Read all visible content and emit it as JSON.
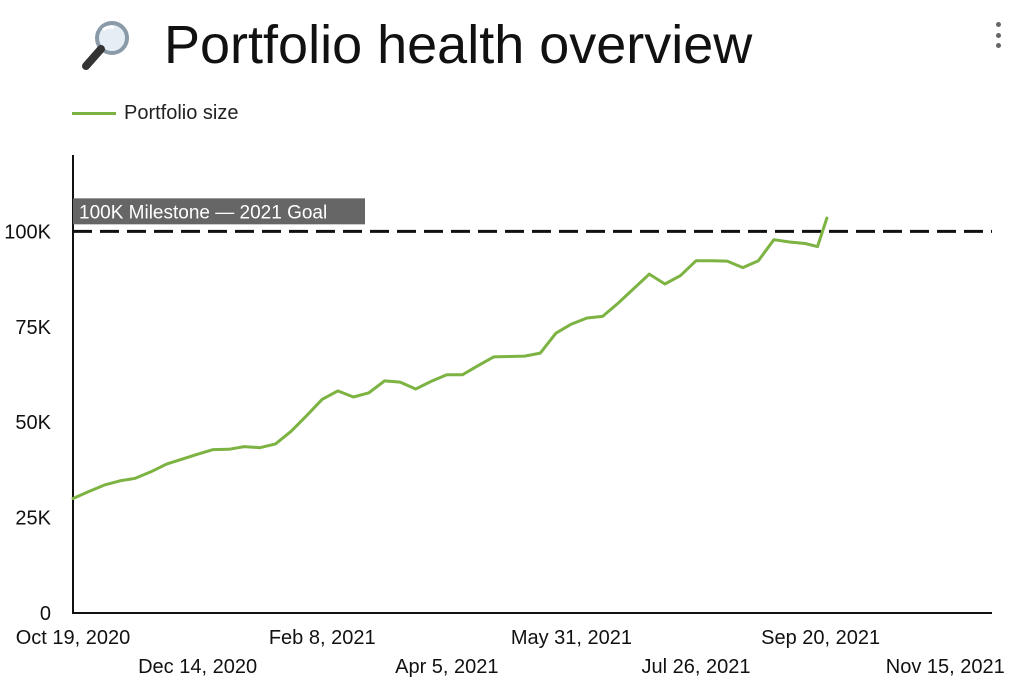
{
  "header": {
    "title": "Portfolio health overview",
    "icon": "magnifying-glass-icon"
  },
  "menu": {
    "icon": "more-vert-icon"
  },
  "colors": {
    "series": "#7cb342",
    "milestone": "#111111",
    "annotation_bg": "#666666"
  },
  "chart_data": {
    "type": "line",
    "title": "Portfolio health overview",
    "legend": [
      "Portfolio size"
    ],
    "legend_position": "top-left",
    "xlabel": "",
    "ylabel": "",
    "x_ticks": [
      "Oct 19, 2020",
      "Dec 14, 2020",
      "Feb 8, 2021",
      "Apr 5, 2021",
      "May 31, 2021",
      "Jul 26, 2021",
      "Sep 20, 2021",
      "Nov 15, 2021"
    ],
    "x_range_weeks": [
      0,
      59
    ],
    "y_ticks": [
      "0",
      "25K",
      "50K",
      "75K",
      "100K"
    ],
    "ylim": [
      0,
      120000
    ],
    "reference_line": {
      "value": 100000,
      "label": "100K Milestone — 2021 Goal",
      "style": "dashed"
    },
    "series": [
      {
        "name": "Portfolio size",
        "x_weeks": [
          0,
          1,
          2,
          3,
          4,
          5,
          6,
          7,
          8,
          9,
          10,
          11,
          12,
          13,
          14,
          15,
          16,
          17,
          18,
          19,
          20,
          21,
          22,
          23,
          24,
          25,
          26,
          27,
          28,
          29,
          30,
          31,
          32,
          33,
          34,
          35,
          36,
          37,
          38,
          39,
          40,
          41,
          42,
          43,
          44,
          45,
          46,
          47
        ],
        "values": [
          30000,
          31800,
          33500,
          34600,
          35300,
          37000,
          39000,
          40300,
          41600,
          42800,
          42900,
          43600,
          43300,
          44300,
          47600,
          51700,
          56000,
          58200,
          56600,
          57700,
          60800,
          60500,
          58700,
          60700,
          62400,
          62400,
          64800,
          67100,
          67200,
          67300,
          68100,
          73300,
          75700,
          77300,
          77700,
          81200,
          85000,
          88800,
          86200,
          88400,
          92300,
          92300,
          92200,
          90500,
          92300,
          97800,
          97200,
          96800
        ]
      }
    ],
    "series_tail": {
      "x_weeks": [
        47.8,
        48.4
      ],
      "values": [
        96000,
        103500
      ]
    }
  }
}
